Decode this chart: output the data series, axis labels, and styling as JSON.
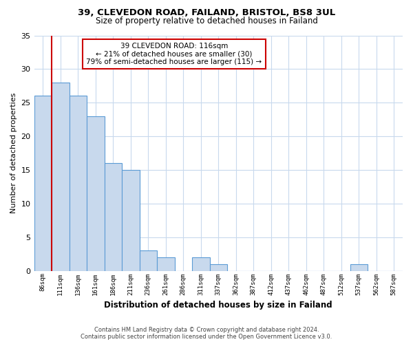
{
  "title": "39, CLEVEDON ROAD, FAILAND, BRISTOL, BS8 3UL",
  "subtitle": "Size of property relative to detached houses in Failand",
  "xlabel": "Distribution of detached houses by size in Failand",
  "ylabel": "Number of detached properties",
  "bin_labels": [
    "86sqm",
    "111sqm",
    "136sqm",
    "161sqm",
    "186sqm",
    "211sqm",
    "236sqm",
    "261sqm",
    "286sqm",
    "311sqm",
    "337sqm",
    "362sqm",
    "387sqm",
    "412sqm",
    "437sqm",
    "462sqm",
    "487sqm",
    "512sqm",
    "537sqm",
    "562sqm",
    "587sqm"
  ],
  "bin_values": [
    26,
    28,
    26,
    23,
    16,
    15,
    3,
    2,
    0,
    2,
    1,
    0,
    0,
    0,
    0,
    0,
    0,
    0,
    1,
    0,
    0
  ],
  "bar_color": "#c8d9ed",
  "bar_edge_color": "#5b9bd5",
  "red_line_color": "#cc0000",
  "annotation_text": "39 CLEVEDON ROAD: 116sqm\n← 21% of detached houses are smaller (30)\n79% of semi-detached houses are larger (115) →",
  "annotation_box_color": "#ffffff",
  "annotation_box_edge_color": "#cc0000",
  "ylim": [
    0,
    35
  ],
  "yticks": [
    0,
    5,
    10,
    15,
    20,
    25,
    30,
    35
  ],
  "grid_color": "#c8d9ed",
  "background_color": "#ffffff",
  "footer_line1": "Contains HM Land Registry data © Crown copyright and database right 2024.",
  "footer_line2": "Contains public sector information licensed under the Open Government Licence v3.0."
}
